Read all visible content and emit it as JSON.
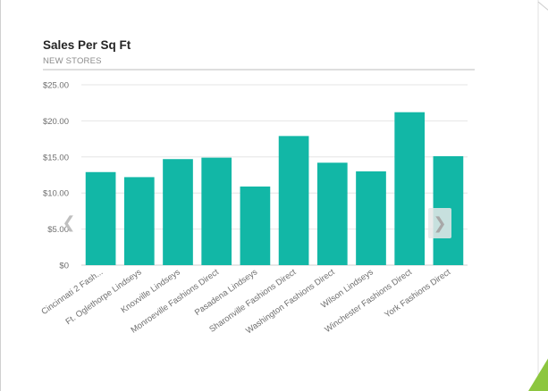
{
  "header": {
    "title": "Sales Per Sq Ft",
    "subtitle": "NEW STORES"
  },
  "navigation": {
    "prev_icon": "chevron-left-icon",
    "next_icon": "chevron-right-icon",
    "prev_glyph": "❮",
    "next_glyph": "❯"
  },
  "colors": {
    "bar": "#12B7A6",
    "grid": "#e6e6e6",
    "axis_text": "#6e6e6e",
    "title": "#252525",
    "subtitle": "#8c8c8c",
    "divider": "#bdbdbd",
    "slide_accent": "#8cc63f"
  },
  "chart_data": {
    "type": "bar",
    "title": "Sales Per Sq Ft",
    "subtitle": "NEW STORES",
    "xlabel": "",
    "ylabel": "",
    "categories": [
      "Cincinnati 2 Fash...",
      "Ft. Oglethorpe Lindseys",
      "Knoxville Lindseys",
      "Monroeville Fashions Direct",
      "Pasadena Lindseys",
      "Sharonville Fashions Direct",
      "Washington Fashions Direct",
      "Wilson Lindseys",
      "Winchester Fashions Direct",
      "York Fashions Direct"
    ],
    "values": [
      12.9,
      12.2,
      14.7,
      14.9,
      10.9,
      17.9,
      14.2,
      13.0,
      21.2,
      15.1
    ],
    "yticks": [
      0,
      5,
      10,
      15,
      20,
      25
    ],
    "ytick_labels": [
      "$0",
      "$5.00",
      "$10.00",
      "$15.00",
      "$20.00",
      "$25.00"
    ],
    "ylim": [
      0,
      25
    ],
    "grid": true,
    "legend": "none"
  }
}
